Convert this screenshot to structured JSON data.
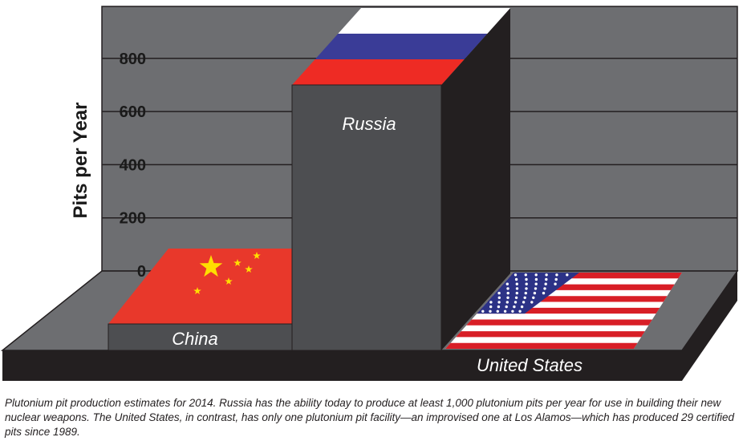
{
  "chart_data": {
    "type": "bar",
    "title": "",
    "xlabel": "",
    "ylabel": "Pits per Year",
    "ylim": [
      0,
      900
    ],
    "yticks": [
      0,
      200,
      400,
      600,
      800
    ],
    "grid": true,
    "categories": [
      "China",
      "Russia",
      "United States"
    ],
    "values": [
      0,
      700,
      0
    ],
    "bar_decoration": [
      "china-flag",
      "russia-flag",
      "us-flag"
    ],
    "colors": {
      "wall": "#6d6e71",
      "bar_front": "#4d4e51",
      "bar_side": "#231f20",
      "base": "#231f20",
      "china_red": "#e8382b",
      "china_star": "#ffde00",
      "russia_white": "#ffffff",
      "russia_blue": "#3a3c97",
      "russia_red": "#ee2b24",
      "us_red": "#d81e26",
      "us_blue": "#2c3286"
    }
  },
  "caption": "Plutonium pit production estimates for 2014. Russia has the ability today to produce at least 1,000 plutonium pits per year for use in building their new nuclear weapons. The United States, in contrast, has only one plutonium pit facility—an improvised one at Los Alamos—which has produced 29 certified pits since 1989."
}
